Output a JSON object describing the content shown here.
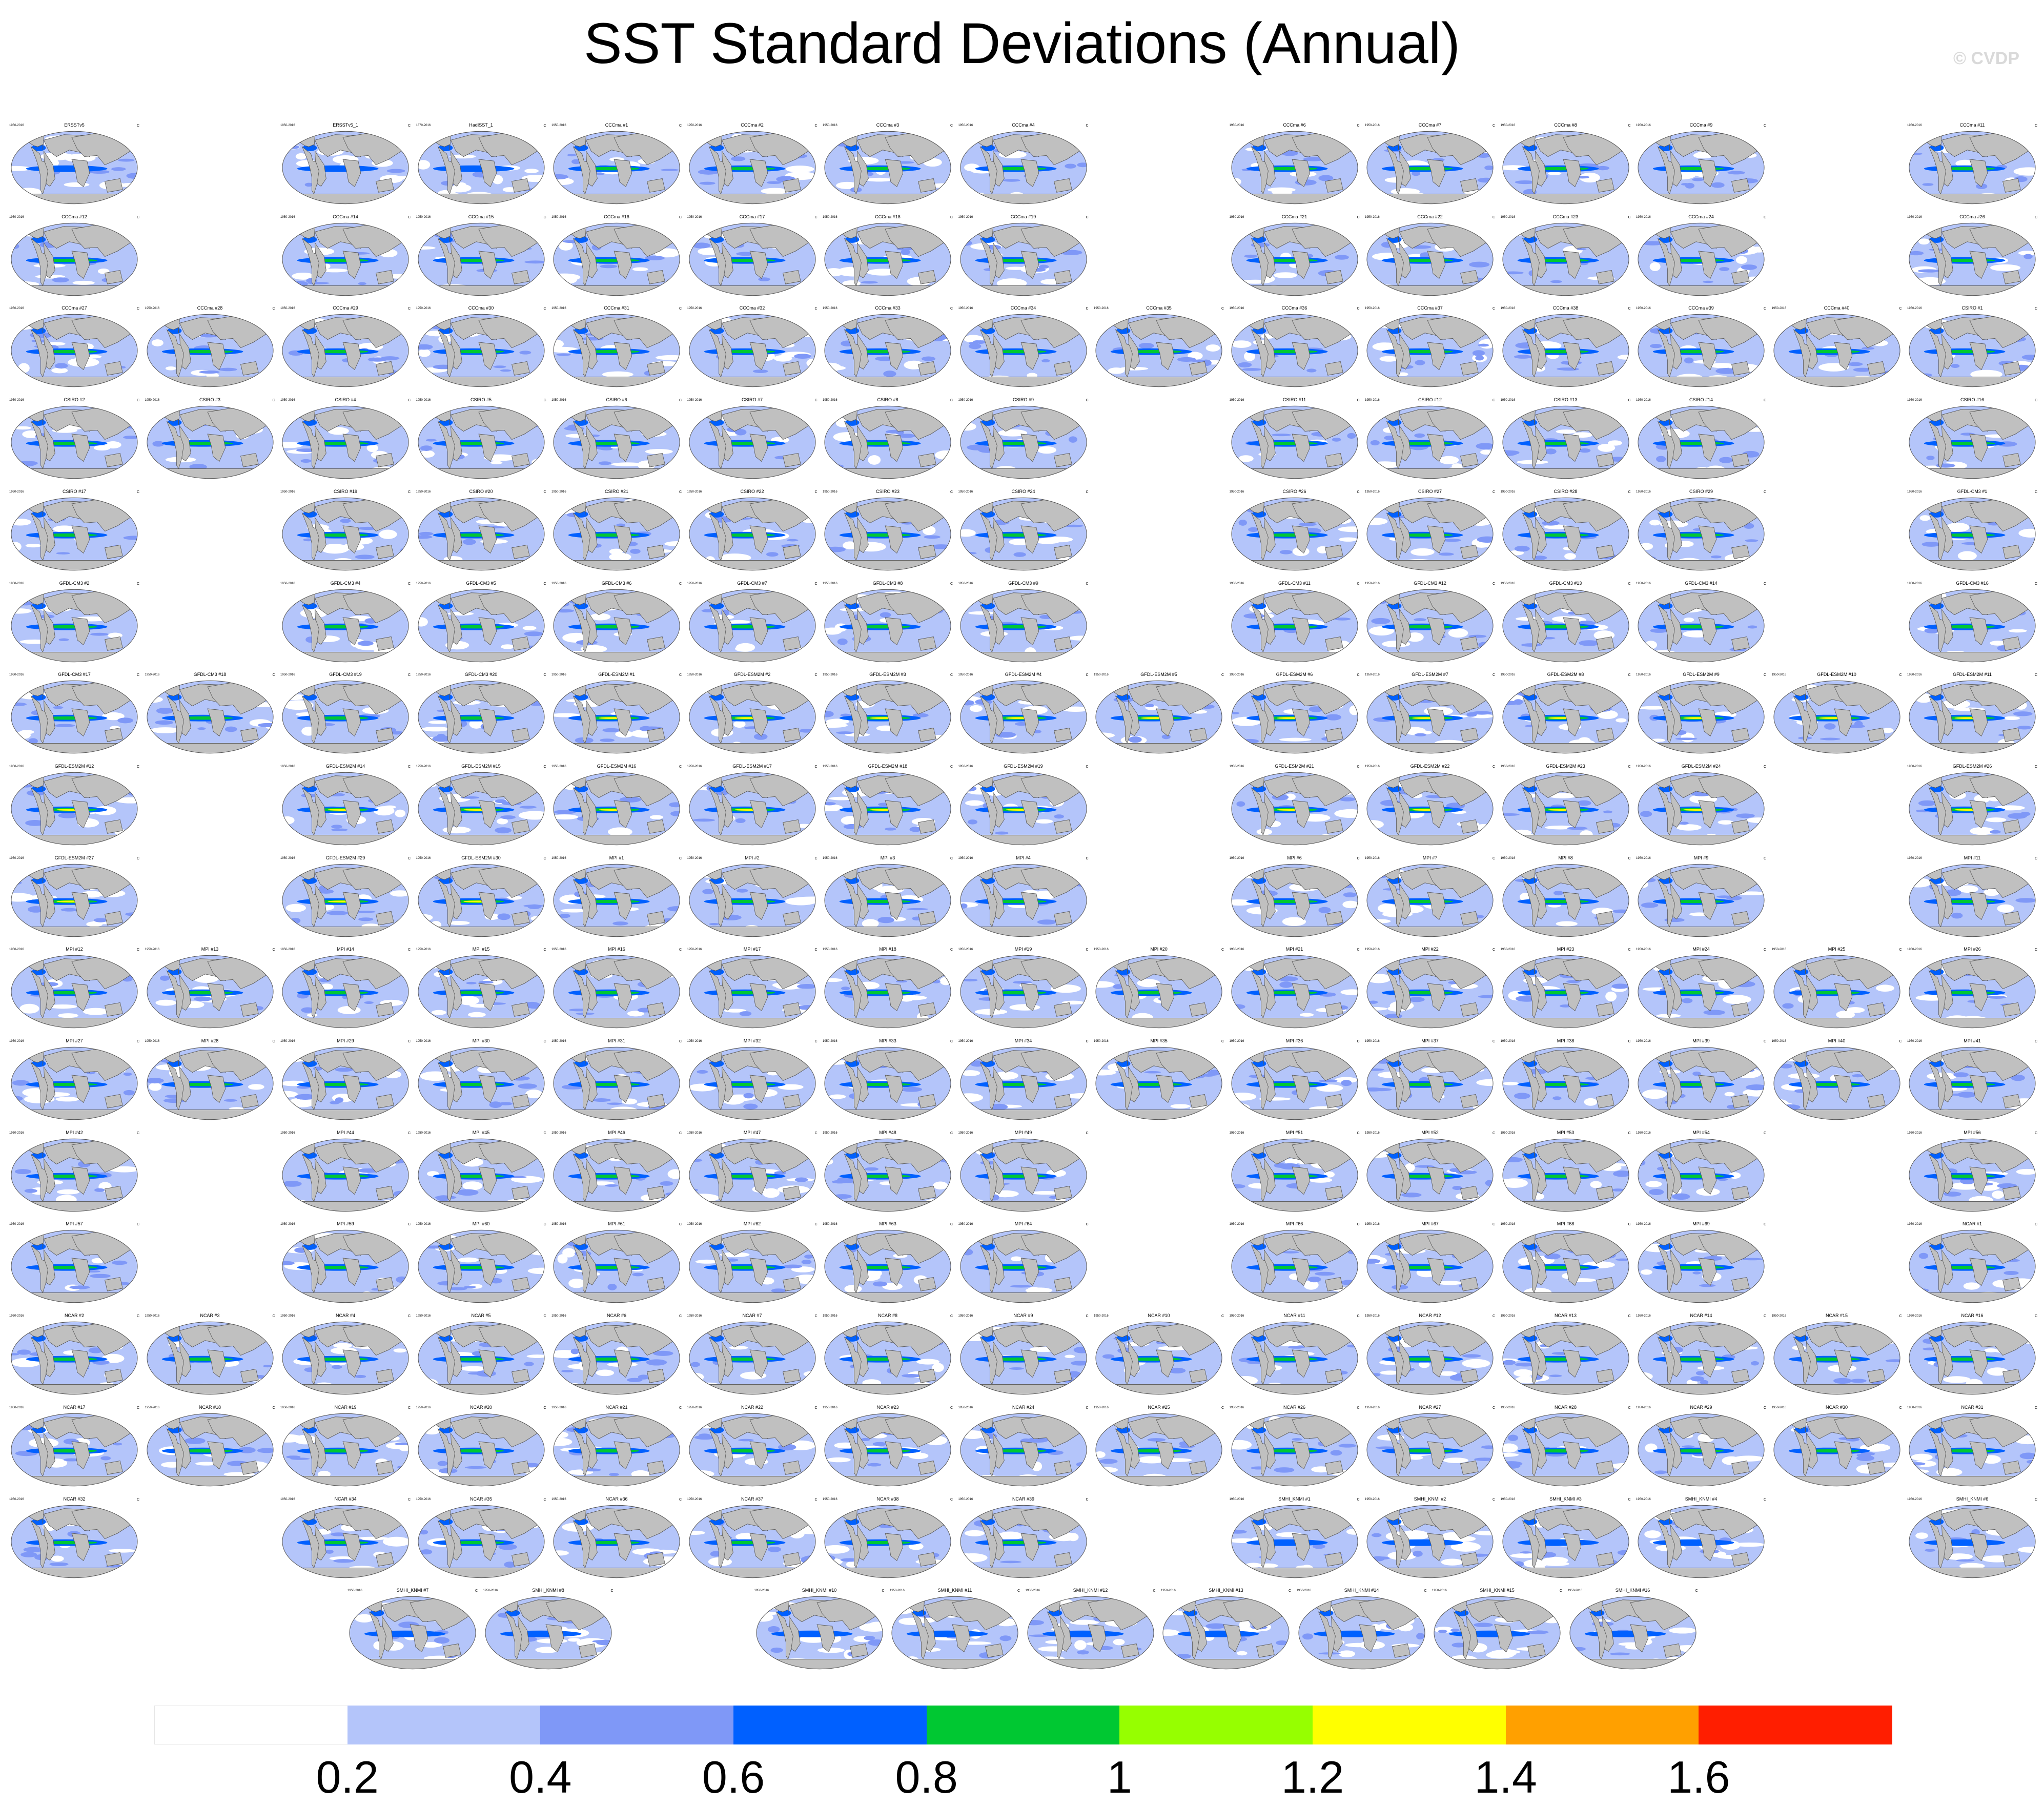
{
  "title": "SST Standard Deviations (Annual)",
  "copyright": "© CVDP",
  "chart_data": {
    "type": "map-panel-grid",
    "title": "SST Standard Deviations (Annual)",
    "units": "C",
    "colorbar": {
      "boundaries": [
        0.2,
        0.4,
        0.6,
        0.8,
        1,
        1.2,
        1.4,
        1.6
      ],
      "tick_labels": [
        "0.2",
        "0.4",
        "0.6",
        "0.8",
        "1",
        "1.2",
        "1.4",
        "1.6"
      ],
      "colors": [
        "#ffffff",
        "#b4c5fa",
        "#7f98f7",
        "#0060ff",
        "#00c832",
        "#96ff00",
        "#ffff00",
        "#ffa000",
        "#ff1e00"
      ]
    },
    "rows": [
      [
        "ERSSTv5",
        null,
        "ERSSTv5_1",
        "HadISST_1",
        "CCCma #1",
        "CCCma #2",
        "CCCma #3",
        "CCCma #4",
        null,
        "CCCma #6",
        "CCCma #7",
        "CCCma #8",
        "CCCma #9",
        null,
        "CCCma #11"
      ],
      [
        "CCCma #12",
        null,
        "CCCma #14",
        "CCCma #15",
        "CCCma #16",
        "CCCma #17",
        "CCCma #18",
        "CCCma #19",
        null,
        "CCCma #21",
        "CCCma #22",
        "CCCma #23",
        "CCCma #24",
        null,
        "CCCma #26"
      ],
      [
        "CCCma #27",
        "CCCma #28",
        "CCCma #29",
        "CCCma #30",
        "CCCma #31",
        "CCCma #32",
        "CCCma #33",
        "CCCma #34",
        "CCCma #35",
        "CCCma #36",
        "CCCma #37",
        "CCCma #38",
        "CCCma #39",
        "CCCma #40",
        "CSIRO #1"
      ],
      [
        "CSIRO #2",
        "CSIRO #3",
        "CSIRO #4",
        "CSIRO #5",
        "CSIRO #6",
        "CSIRO #7",
        "CSIRO #8",
        "CSIRO #9",
        null,
        "CSIRO #11",
        "CSIRO #12",
        "CSIRO #13",
        "CSIRO #14",
        null,
        "CSIRO #16"
      ],
      [
        "CSIRO #17",
        null,
        "CSIRO #19",
        "CSIRO #20",
        "CSIRO #21",
        "CSIRO #22",
        "CSIRO #23",
        "CSIRO #24",
        null,
        "CSIRO #26",
        "CSIRO #27",
        "CSIRO #28",
        "CSIRO #29",
        null,
        "GFDL-CM3 #1"
      ],
      [
        "GFDL-CM3 #2",
        null,
        "GFDL-CM3 #4",
        "GFDL-CM3 #5",
        "GFDL-CM3 #6",
        "GFDL-CM3 #7",
        "GFDL-CM3 #8",
        "GFDL-CM3 #9",
        null,
        "GFDL-CM3 #11",
        "GFDL-CM3 #12",
        "GFDL-CM3 #13",
        "GFDL-CM3 #14",
        null,
        "GFDL-CM3 #16"
      ],
      [
        "GFDL-CM3 #17",
        "GFDL-CM3 #18",
        "GFDL-CM3 #19",
        "GFDL-CM3 #20",
        "GFDL-ESM2M #1",
        "GFDL-ESM2M #2",
        "GFDL-ESM2M #3",
        "GFDL-ESM2M #4",
        "GFDL-ESM2M #5",
        "GFDL-ESM2M #6",
        "GFDL-ESM2M #7",
        "GFDL-ESM2M #8",
        "GFDL-ESM2M #9",
        "GFDL-ESM2M #10",
        "GFDL-ESM2M #11"
      ],
      [
        "GFDL-ESM2M #12",
        null,
        "GFDL-ESM2M #14",
        "GFDL-ESM2M #15",
        "GFDL-ESM2M #16",
        "GFDL-ESM2M #17",
        "GFDL-ESM2M #18",
        "GFDL-ESM2M #19",
        null,
        "GFDL-ESM2M #21",
        "GFDL-ESM2M #22",
        "GFDL-ESM2M #23",
        "GFDL-ESM2M #24",
        null,
        "GFDL-ESM2M #26"
      ],
      [
        "GFDL-ESM2M #27",
        null,
        "GFDL-ESM2M #29",
        "GFDL-ESM2M #30",
        "MPI #1",
        "MPI #2",
        "MPI #3",
        "MPI #4",
        null,
        "MPI #6",
        "MPI #7",
        "MPI #8",
        "MPI #9",
        null,
        "MPI #11"
      ],
      [
        "MPI #12",
        "MPI #13",
        "MPI #14",
        "MPI #15",
        "MPI #16",
        "MPI #17",
        "MPI #18",
        "MPI #19",
        "MPI #20",
        "MPI #21",
        "MPI #22",
        "MPI #23",
        "MPI #24",
        "MPI #25",
        "MPI #26"
      ],
      [
        "MPI #27",
        "MPI #28",
        "MPI #29",
        "MPI #30",
        "MPI #31",
        "MPI #32",
        "MPI #33",
        "MPI #34",
        "MPI #35",
        "MPI #36",
        "MPI #37",
        "MPI #38",
        "MPI #39",
        "MPI #40",
        "MPI #41"
      ],
      [
        "MPI #42",
        null,
        "MPI #44",
        "MPI #45",
        "MPI #46",
        "MPI #47",
        "MPI #48",
        "MPI #49",
        null,
        "MPI #51",
        "MPI #52",
        "MPI #53",
        "MPI #54",
        null,
        "MPI #56"
      ],
      [
        "MPI #57",
        null,
        "MPI #59",
        "MPI #60",
        "MPI #61",
        "MPI #62",
        "MPI #63",
        "MPI #64",
        null,
        "MPI #66",
        "MPI #67",
        "MPI #68",
        "MPI #69",
        null,
        "NCAR #1"
      ],
      [
        "NCAR #2",
        "NCAR #3",
        "NCAR #4",
        "NCAR #5",
        "NCAR #6",
        "NCAR #7",
        "NCAR #8",
        "NCAR #9",
        "NCAR #10",
        "NCAR #11",
        "NCAR #12",
        "NCAR #13",
        "NCAR #14",
        "NCAR #15",
        "NCAR #16"
      ],
      [
        "NCAR #17",
        "NCAR #18",
        "NCAR #19",
        "NCAR #20",
        "NCAR #21",
        "NCAR #22",
        "NCAR #23",
        "NCAR #24",
        "NCAR #25",
        "NCAR #26",
        "NCAR #27",
        "NCAR #28",
        "NCAR #29",
        "NCAR #30",
        "NCAR #31"
      ],
      [
        "NCAR #32",
        null,
        "NCAR #34",
        "NCAR #35",
        "NCAR #36",
        "NCAR #37",
        "NCAR #38",
        "NCAR #39",
        null,
        "SMHI_KNMI #1",
        "SMHI_KNMI #2",
        "SMHI_KNMI #3",
        "SMHI_KNMI #4",
        null,
        "SMHI_KNMI #6"
      ]
    ],
    "last_row": [
      "SMHI_KNMI #7",
      "SMHI_KNMI #8",
      null,
      "SMHI_KNMI #10",
      "SMHI_KNMI #11",
      "SMHI_KNMI #12",
      "SMHI_KNMI #13",
      "SMHI_KNMI #14",
      "SMHI_KNMI #15",
      "SMHI_KNMI #16"
    ],
    "period_label": "1950-2016",
    "period_label_hadisst": "1870-2016",
    "units_label": "C"
  }
}
